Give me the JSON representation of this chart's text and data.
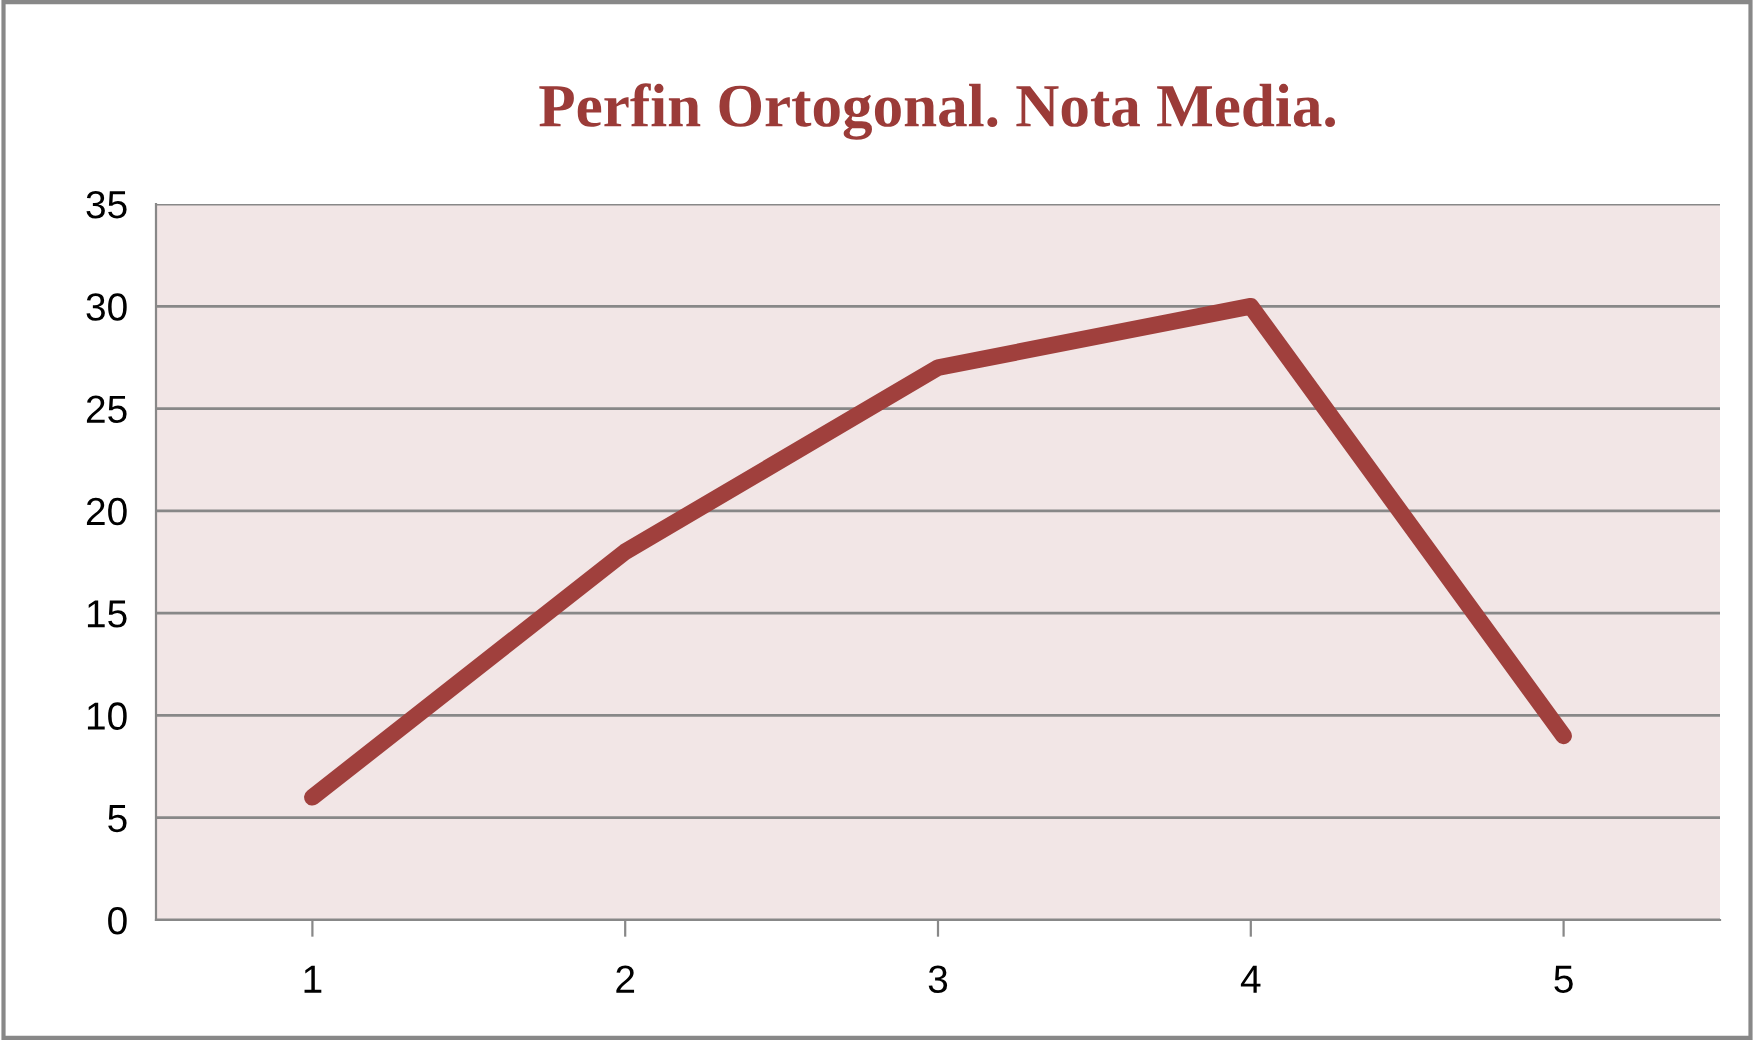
{
  "chart_data": {
    "type": "line",
    "title": "Perfin Ortogonal. Nota Media.",
    "categories": [
      "1",
      "2",
      "3",
      "4",
      "5"
    ],
    "series": [
      {
        "color": "#a0403d",
        "values": [
          6,
          18,
          27,
          30,
          9
        ]
      }
    ],
    "ylim": [
      0,
      35
    ],
    "yticks": [
      0,
      5,
      10,
      15,
      20,
      25,
      30,
      35
    ],
    "grid": "y",
    "marker": "none",
    "line_style": "solid"
  }
}
